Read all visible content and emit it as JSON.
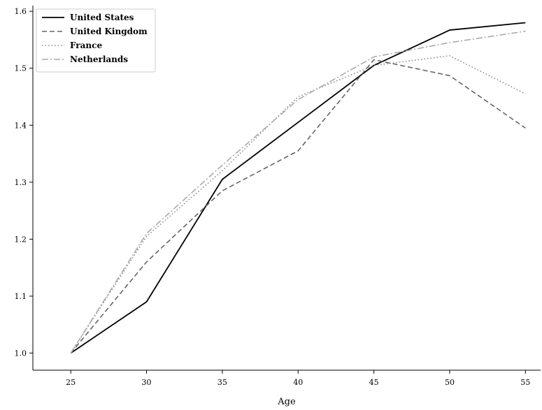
{
  "chart_data": {
    "type": "line",
    "title": "",
    "xlabel": "Age",
    "ylabel": "",
    "x": [
      25,
      30,
      35,
      40,
      45,
      50,
      55
    ],
    "xlim": [
      22.5,
      56
    ],
    "ylim": [
      0.97,
      1.61
    ],
    "xticks": [
      "25",
      "30",
      "35",
      "40",
      "45",
      "50",
      "55"
    ],
    "yticks": [
      "1.0",
      "1.1",
      "1.2",
      "1.3",
      "1.4",
      "1.5",
      "1.6"
    ],
    "grid": false,
    "legend_position": "top-left",
    "series": [
      {
        "name": "United States",
        "values": [
          1.0,
          1.09,
          1.305,
          1.405,
          1.505,
          1.567,
          1.58
        ],
        "color": "#000000",
        "dash": "solid"
      },
      {
        "name": "United Kingdom",
        "values": [
          1.0,
          1.16,
          1.285,
          1.355,
          1.515,
          1.487,
          1.395
        ],
        "color": "#666666",
        "dash": "dashed"
      },
      {
        "name": "France",
        "values": [
          1.0,
          1.205,
          1.32,
          1.45,
          1.505,
          1.522,
          1.455
        ],
        "color": "#888888",
        "dash": "dotted"
      },
      {
        "name": "Netherlands",
        "values": [
          1.0,
          1.21,
          1.33,
          1.445,
          1.52,
          1.545,
          1.565
        ],
        "color": "#aaaaaa",
        "dash": "dashdot"
      }
    ]
  }
}
